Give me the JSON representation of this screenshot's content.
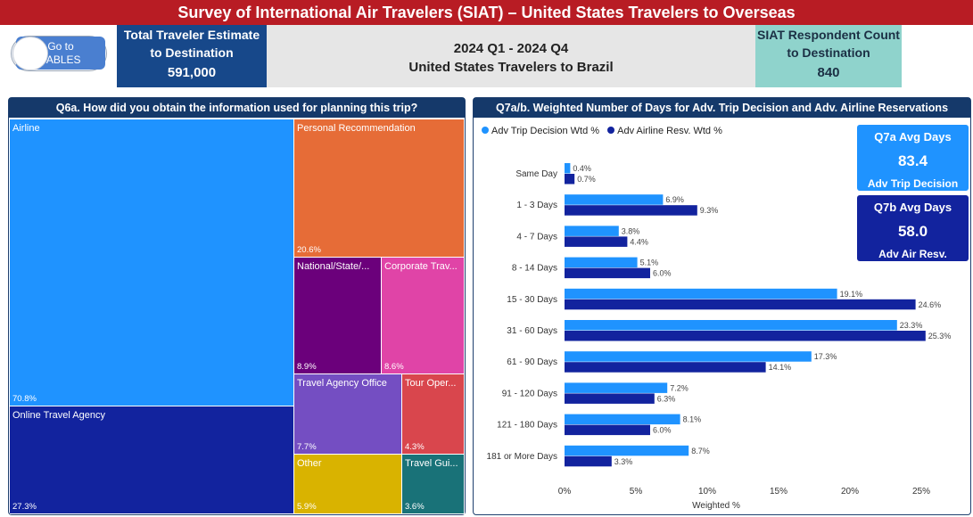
{
  "header": {
    "title": "Survey of International Air Travelers (SIAT)  – United States Travelers  to Overseas"
  },
  "go_to": {
    "label_line1": "Go to",
    "label_line2": "TABLES"
  },
  "kpi_left": {
    "label_line1": "Total Traveler Estimate",
    "label_line2": "to Destination",
    "value": "591,000"
  },
  "center": {
    "line1": "2024 Q1 - 2024 Q4",
    "line2": "United States Travelers to Brazil"
  },
  "kpi_right": {
    "label_line1": "SIAT Respondent Count",
    "label_line2": "to Destination",
    "value": "840"
  },
  "treemap": {
    "title": "Q6a. How did you obtain the information used for planning this trip?",
    "items": [
      {
        "name": "Airline",
        "pct": "70.8%",
        "color": "#1f93ff"
      },
      {
        "name": "Online Travel Agency",
        "pct": "27.3%",
        "color": "#12239e"
      },
      {
        "name": "Personal Recommendation",
        "pct": "20.6%",
        "color": "#e66c37"
      },
      {
        "name": "National/State/...",
        "pct": "8.9%",
        "color": "#6b007b"
      },
      {
        "name": "Corporate Trav...",
        "pct": "8.6%",
        "color": "#e044a7"
      },
      {
        "name": "Travel Agency Office",
        "pct": "7.7%",
        "color": "#744ec2"
      },
      {
        "name": "Tour Oper...",
        "pct": "4.3%",
        "color": "#d9464d"
      },
      {
        "name": "Other",
        "pct": "5.9%",
        "color": "#d9b300"
      },
      {
        "name": "Travel Gui...",
        "pct": "3.6%",
        "color": "#197278"
      }
    ]
  },
  "bar_panel": {
    "title": "Q7a/b. Weighted Number of Days for Adv. Trip Decision and Adv. Airline Reservations",
    "q7a": {
      "title": "Q7a Avg Days",
      "value": "83.4",
      "sub": "Adv Trip Decision",
      "color": "#1f93ff"
    },
    "q7b": {
      "title": "Q7b Avg Days",
      "value": "58.0",
      "sub": "Adv Air Resv.",
      "color": "#12239e"
    }
  },
  "chart_data": {
    "type": "bar",
    "orientation": "horizontal",
    "categories": [
      "Same Day",
      "1 - 3 Days",
      "4 - 7 Days",
      "8 - 14 Days",
      "15 - 30 Days",
      "31 - 60 Days",
      "61 - 90 Days",
      "91 - 120 Days",
      "121 - 180 Days",
      "181 or More Days"
    ],
    "series": [
      {
        "name": "Adv Trip Decision Wtd %",
        "color": "#1f93ff",
        "values": [
          0.4,
          6.9,
          3.8,
          5.1,
          19.1,
          23.3,
          17.3,
          7.2,
          8.1,
          8.7
        ]
      },
      {
        "name": "Adv Airline Resv. Wtd %",
        "color": "#12239e",
        "values": [
          0.7,
          9.3,
          4.4,
          6.0,
          24.6,
          25.3,
          14.1,
          6.3,
          6.0,
          3.3
        ]
      }
    ],
    "xlabel": "Weighted %",
    "ticks": [
      "0%",
      "5%",
      "10%",
      "15%",
      "20%",
      "25%"
    ],
    "xlim": [
      0,
      25
    ],
    "legend": "top-left",
    "grid": false
  }
}
